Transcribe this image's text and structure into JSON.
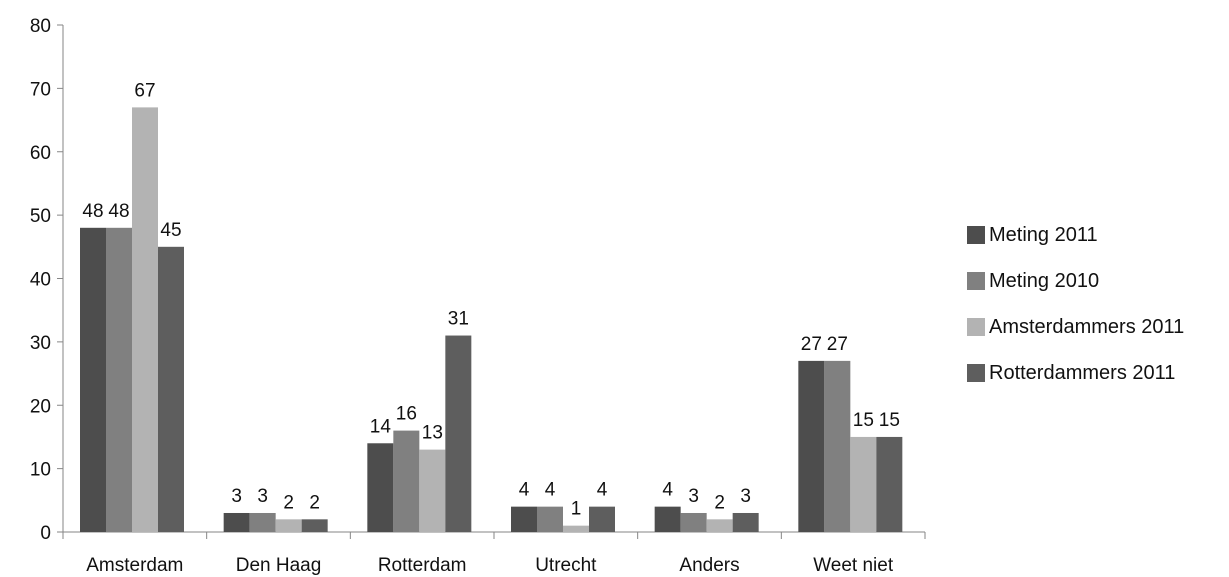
{
  "chart_data": {
    "type": "bar",
    "categories": [
      "Amsterdam",
      "Den Haag",
      "Rotterdam",
      "Utrecht",
      "Anders",
      "Weet niet"
    ],
    "series": [
      {
        "name": "Meting 2011",
        "values": [
          48,
          3,
          14,
          4,
          4,
          27
        ],
        "color": "#4d4d4d"
      },
      {
        "name": "Meting 2010",
        "values": [
          48,
          3,
          16,
          4,
          3,
          27
        ],
        "color": "#808080"
      },
      {
        "name": "Amsterdammers 2011",
        "values": [
          67,
          2,
          13,
          1,
          2,
          15
        ],
        "color": "#b3b3b3"
      },
      {
        "name": "Rotterdammers 2011",
        "values": [
          45,
          2,
          31,
          4,
          3,
          15
        ],
        "color": "#5e5e5e"
      }
    ],
    "ylim": [
      0,
      80
    ],
    "yticks": [
      0,
      10,
      20,
      30,
      40,
      50,
      60,
      70,
      80
    ],
    "data_labels": true,
    "grid": false,
    "legend_position": "right"
  }
}
